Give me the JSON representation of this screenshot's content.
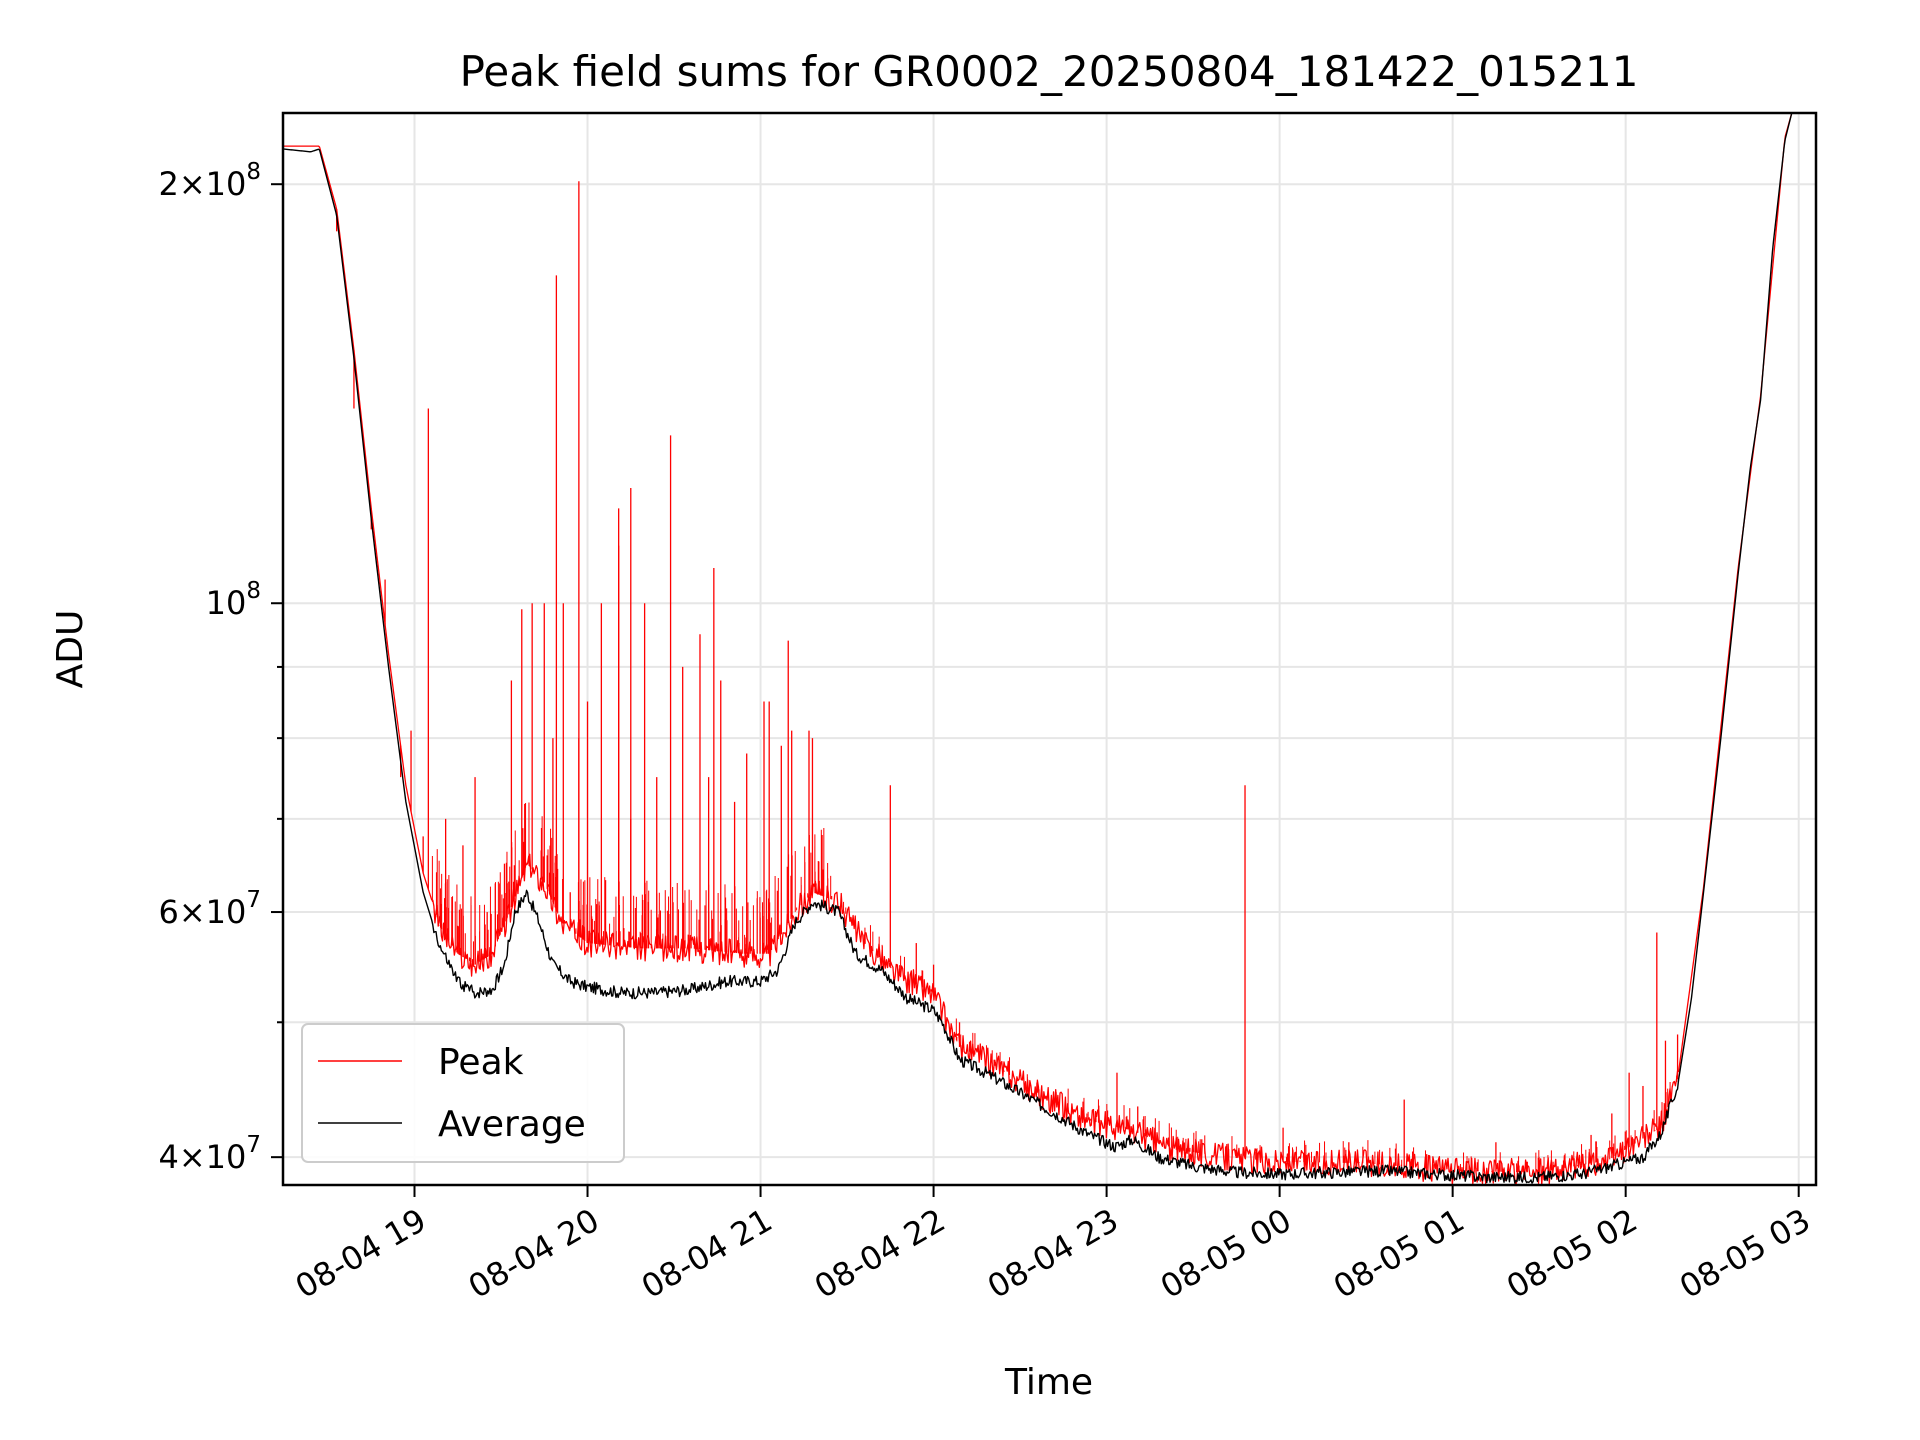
{
  "chart_data": {
    "type": "line",
    "title": "Peak field sums for GR0002_20250804_181422_015211",
    "xlabel": "Time",
    "ylabel": "ADU",
    "x_domain_hours": [
      18.24,
      27.1
    ],
    "y_scale": "log",
    "ylim": [
      38200000,
      225000000
    ],
    "grid": true,
    "legend": {
      "location": "lower-left",
      "entries": [
        "Peak",
        "Average"
      ]
    },
    "x_ticks": [
      {
        "hour": 19,
        "label": "08-04 19"
      },
      {
        "hour": 20,
        "label": "08-04 20"
      },
      {
        "hour": 21,
        "label": "08-04 21"
      },
      {
        "hour": 22,
        "label": "08-04 22"
      },
      {
        "hour": 23,
        "label": "08-04 23"
      },
      {
        "hour": 24,
        "label": "08-05 00"
      },
      {
        "hour": 25,
        "label": "08-05 01"
      },
      {
        "hour": 26,
        "label": "08-05 02"
      },
      {
        "hour": 27,
        "label": "08-05 03"
      }
    ],
    "y_ticks_major": [
      {
        "value": 40000000,
        "mantissa": "4",
        "exp": "7"
      },
      {
        "value": 60000000,
        "mantissa": "6",
        "exp": "7"
      },
      {
        "value": 100000000,
        "mantissa": "",
        "exp": "8"
      },
      {
        "value": 200000000,
        "mantissa": "2",
        "exp": "8"
      }
    ],
    "y_ticks_minor": [
      50000000,
      70000000,
      80000000,
      90000000
    ],
    "series": [
      {
        "name": "Average",
        "color": "#000000",
        "points": [
          [
            18.24,
            212000000
          ],
          [
            18.4,
            211000000
          ],
          [
            18.45,
            212000000
          ],
          [
            18.55,
            190000000
          ],
          [
            18.65,
            150000000
          ],
          [
            18.75,
            115000000
          ],
          [
            18.85,
            90000000
          ],
          [
            18.95,
            72000000
          ],
          [
            19.05,
            62000000
          ],
          [
            19.15,
            56500000
          ],
          [
            19.25,
            53500000
          ],
          [
            19.35,
            52500000
          ],
          [
            19.45,
            52800000
          ],
          [
            19.52,
            55000000
          ],
          [
            19.58,
            60000000
          ],
          [
            19.65,
            62000000
          ],
          [
            19.72,
            59000000
          ],
          [
            19.8,
            55000000
          ],
          [
            19.9,
            53500000
          ],
          [
            20.0,
            53000000
          ],
          [
            20.2,
            52500000
          ],
          [
            20.4,
            52500000
          ],
          [
            20.6,
            52800000
          ],
          [
            20.8,
            53500000
          ],
          [
            21.0,
            53500000
          ],
          [
            21.1,
            54500000
          ],
          [
            21.2,
            59000000
          ],
          [
            21.3,
            61000000
          ],
          [
            21.45,
            60000000
          ],
          [
            21.55,
            56000000
          ],
          [
            21.7,
            54500000
          ],
          [
            21.85,
            52000000
          ],
          [
            22.0,
            51000000
          ],
          [
            22.05,
            50000000
          ],
          [
            22.15,
            47000000
          ],
          [
            22.3,
            46000000
          ],
          [
            22.5,
            44500000
          ],
          [
            22.7,
            43000000
          ],
          [
            22.9,
            41500000
          ],
          [
            23.05,
            40700000
          ],
          [
            23.15,
            41200000
          ],
          [
            23.3,
            40000000
          ],
          [
            23.5,
            39400000
          ],
          [
            23.75,
            39000000
          ],
          [
            24.0,
            38900000
          ],
          [
            24.3,
            39000000
          ],
          [
            24.6,
            39100000
          ],
          [
            24.9,
            38900000
          ],
          [
            25.2,
            38700000
          ],
          [
            25.5,
            38700000
          ],
          [
            25.75,
            38900000
          ],
          [
            25.95,
            39500000
          ],
          [
            26.1,
            40000000
          ],
          [
            26.2,
            41500000
          ],
          [
            26.3,
            45000000
          ],
          [
            26.38,
            52000000
          ],
          [
            26.45,
            62000000
          ],
          [
            26.55,
            80000000
          ],
          [
            26.65,
            105000000
          ],
          [
            26.72,
            125000000
          ],
          [
            26.78,
            140000000
          ],
          [
            26.85,
            180000000
          ],
          [
            26.92,
            215000000
          ],
          [
            26.96,
            225000000
          ]
        ]
      },
      {
        "name": "Peak",
        "color": "#ff0000",
        "points": [
          [
            18.24,
            213000000
          ],
          [
            18.45,
            213000000
          ],
          [
            18.55,
            192000000
          ],
          [
            18.65,
            152000000
          ],
          [
            18.75,
            117000000
          ],
          [
            18.85,
            92000000
          ],
          [
            18.95,
            74000000
          ],
          [
            19.05,
            64000000
          ],
          [
            19.15,
            58500000
          ],
          [
            19.25,
            56000000
          ],
          [
            19.35,
            55000000
          ],
          [
            19.45,
            56000000
          ],
          [
            19.55,
            60000000
          ],
          [
            19.65,
            65000000
          ],
          [
            19.75,
            63000000
          ],
          [
            19.85,
            59000000
          ],
          [
            20.0,
            57000000
          ],
          [
            20.3,
            56500000
          ],
          [
            20.6,
            56500000
          ],
          [
            20.9,
            56000000
          ],
          [
            21.05,
            56000000
          ],
          [
            21.2,
            60000000
          ],
          [
            21.3,
            62000000
          ],
          [
            21.45,
            61000000
          ],
          [
            21.6,
            57000000
          ],
          [
            21.8,
            54000000
          ],
          [
            22.0,
            52500000
          ],
          [
            22.15,
            48000000
          ],
          [
            22.3,
            47000000
          ],
          [
            22.6,
            44500000
          ],
          [
            22.9,
            42500000
          ],
          [
            23.15,
            41800000
          ],
          [
            23.4,
            40500000
          ],
          [
            23.7,
            40000000
          ],
          [
            24.0,
            39700000
          ],
          [
            24.5,
            39600000
          ],
          [
            25.0,
            39100000
          ],
          [
            25.5,
            39000000
          ],
          [
            25.9,
            39800000
          ],
          [
            26.2,
            42000000
          ],
          [
            26.3,
            45500000
          ],
          [
            26.45,
            62500000
          ],
          [
            26.65,
            106000000
          ],
          [
            26.78,
            141000000
          ],
          [
            26.92,
            216000000
          ],
          [
            26.96,
            225000000
          ]
        ],
        "spikes": [
          [
            18.55,
            185000000
          ],
          [
            18.65,
            138000000
          ],
          [
            18.75,
            113000000
          ],
          [
            18.83,
            104000000
          ],
          [
            18.92,
            75000000
          ],
          [
            18.98,
            81000000
          ],
          [
            19.05,
            68000000
          ],
          [
            19.18,
            70000000
          ],
          [
            19.28,
            67000000
          ],
          [
            19.35,
            75000000
          ],
          [
            19.42,
            60000000
          ],
          [
            19.52,
            65000000
          ],
          [
            19.56,
            88000000
          ],
          [
            19.62,
            99000000
          ],
          [
            19.68,
            100000000
          ],
          [
            19.75,
            100000000
          ],
          [
            19.8,
            80000000
          ],
          [
            19.86,
            100000000
          ],
          [
            19.9,
            62000000
          ],
          [
            19.95,
            80000000
          ],
          [
            20.0,
            85000000
          ],
          [
            20.08,
            100000000
          ],
          [
            20.18,
            110000000
          ],
          [
            20.25,
            70000000
          ],
          [
            20.33,
            100000000
          ],
          [
            20.4,
            75000000
          ],
          [
            20.55,
            90000000
          ],
          [
            20.65,
            95000000
          ],
          [
            20.7,
            75000000
          ],
          [
            20.77,
            88000000
          ],
          [
            20.85,
            72000000
          ],
          [
            20.92,
            78000000
          ],
          [
            21.05,
            85000000
          ],
          [
            21.12,
            79000000
          ],
          [
            21.18,
            81000000
          ],
          [
            21.3,
            80000000
          ],
          [
            19.08,
            138000000
          ],
          [
            19.82,
            172000000
          ],
          [
            19.95,
            201000000
          ],
          [
            20.18,
            117000000
          ],
          [
            20.25,
            121000000
          ],
          [
            20.48,
            132000000
          ],
          [
            20.73,
            106000000
          ],
          [
            21.02,
            85000000
          ],
          [
            21.16,
            94000000
          ],
          [
            21.28,
            81000000
          ],
          [
            21.75,
            74000000
          ],
          [
            21.9,
            57000000
          ],
          [
            22.0,
            55000000
          ],
          [
            22.15,
            50000000
          ],
          [
            22.35,
            47000000
          ],
          [
            22.6,
            45000000
          ],
          [
            23.06,
            46000000
          ],
          [
            23.18,
            43500000
          ],
          [
            23.55,
            41200000
          ],
          [
            23.8,
            74000000
          ],
          [
            24.02,
            42000000
          ],
          [
            24.4,
            41000000
          ],
          [
            24.72,
            44000000
          ],
          [
            24.85,
            40200000
          ],
          [
            25.25,
            41000000
          ],
          [
            25.5,
            39800000
          ],
          [
            25.8,
            41500000
          ],
          [
            25.92,
            43000000
          ],
          [
            26.02,
            46000000
          ],
          [
            26.1,
            45000000
          ],
          [
            26.18,
            58000000
          ],
          [
            26.23,
            48500000
          ],
          [
            26.3,
            49000000
          ]
        ]
      }
    ]
  }
}
